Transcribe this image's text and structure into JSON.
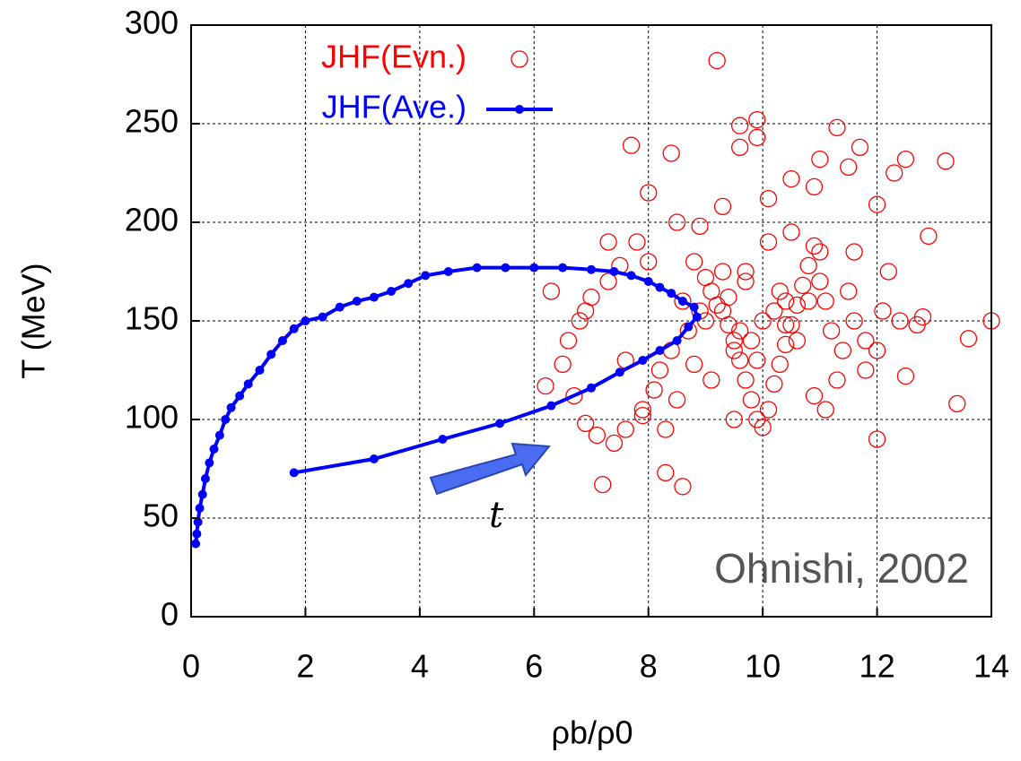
{
  "chart_data": {
    "type": "scatter",
    "xlabel": "ρb/ρ0",
    "ylabel": "T (MeV)",
    "annotations": [
      "Ohnishi, 2002",
      "t"
    ],
    "xlim": [
      0,
      14
    ],
    "ylim": [
      0,
      300
    ],
    "xticks": [
      0,
      2,
      4,
      6,
      8,
      10,
      12,
      14
    ],
    "yticks": [
      0,
      50,
      100,
      150,
      200,
      250,
      300
    ],
    "grid": true,
    "legend": "upper left",
    "series": [
      {
        "name": "JHF(Evn.)",
        "color": "#ff0000",
        "marker": "open-circle",
        "x": [
          9.2,
          9.9,
          9.9,
          9.6,
          9.6,
          13.2,
          14.0,
          13.6,
          13.4,
          8.6,
          7.2,
          8.3,
          12.0,
          12.5,
          12.5,
          6.2,
          6.3,
          7.7,
          8.4,
          11.3,
          11.0,
          11.5,
          11.7,
          12.3,
          12.9,
          12.8,
          12.2,
          12.0,
          11.6,
          10.9,
          10.5,
          10.1,
          9.3,
          8.9,
          8.5,
          8.0,
          7.8,
          7.5,
          7.3,
          7.0,
          6.8,
          6.6,
          6.5,
          6.7,
          6.9,
          7.1,
          7.4,
          7.6,
          7.9,
          8.1,
          8.2,
          8.4,
          8.6,
          8.8,
          9.0,
          9.1,
          9.3,
          9.4,
          9.5,
          9.6,
          9.7,
          9.8,
          9.9,
          10.0,
          10.1,
          10.2,
          10.3,
          10.4,
          10.5,
          10.6,
          10.7,
          10.8,
          10.9,
          11.0,
          11.1,
          11.2,
          11.4,
          11.6,
          11.8,
          12.1,
          9.0,
          9.2,
          9.4,
          9.6,
          9.8,
          10.0,
          10.2,
          10.4,
          9.5,
          9.7,
          8.7,
          8.9,
          10.6,
          10.8,
          9.3,
          9.9,
          10.3,
          8.5,
          11.0,
          11.5,
          7.9,
          8.3,
          9.1,
          10.1,
          10.9,
          11.8,
          12.4,
          7.6,
          6.9,
          8.0,
          9.5,
          10.5,
          11.3,
          12.7,
          8.8,
          9.7,
          10.4,
          11.1,
          7.3,
          12.0
        ],
        "values": [
          282,
          252,
          243,
          249,
          238,
          231,
          150,
          141,
          108,
          66,
          67,
          73,
          90,
          122,
          232,
          117,
          165,
          239,
          235,
          248,
          232,
          228,
          238,
          225,
          193,
          152,
          175,
          209,
          185,
          218,
          222,
          212,
          208,
          198,
          200,
          215,
          190,
          178,
          170,
          162,
          150,
          140,
          128,
          112,
          98,
          92,
          88,
          95,
          105,
          115,
          125,
          135,
          160,
          180,
          172,
          165,
          155,
          148,
          140,
          130,
          120,
          110,
          100,
          96,
          105,
          118,
          128,
          138,
          148,
          158,
          168,
          178,
          188,
          170,
          160,
          145,
          135,
          150,
          125,
          155,
          150,
          158,
          162,
          145,
          140,
          150,
          155,
          148,
          135,
          170,
          145,
          155,
          140,
          160,
          175,
          130,
          165,
          110,
          185,
          165,
          102,
          95,
          120,
          190,
          112,
          140,
          150,
          130,
          155,
          180,
          100,
          195,
          120,
          148,
          128,
          175,
          160,
          105,
          190,
          135
        ]
      },
      {
        "name": "JHF(Ave.)",
        "color": "#0000ff",
        "marker": "dot-line",
        "x": [
          1.8,
          3.2,
          4.4,
          5.4,
          6.3,
          7.0,
          7.5,
          7.9,
          8.2,
          8.5,
          8.7,
          8.85,
          8.8,
          8.6,
          8.4,
          8.2,
          8.0,
          7.7,
          7.4,
          7.0,
          6.5,
          6.0,
          5.5,
          5.0,
          4.5,
          4.1,
          3.8,
          3.5,
          3.2,
          2.9,
          2.6,
          2.3,
          2.0,
          1.8,
          1.6,
          1.4,
          1.2,
          1.0,
          0.85,
          0.7,
          0.6,
          0.5,
          0.4,
          0.32,
          0.25,
          0.2,
          0.15,
          0.12,
          0.1,
          0.08
        ],
        "values": [
          73,
          80,
          90,
          98,
          107,
          116,
          124,
          130,
          135,
          140,
          147,
          152,
          157,
          160,
          164,
          167,
          170,
          173,
          175,
          176,
          177,
          177,
          177,
          177,
          175,
          173,
          169,
          165,
          162,
          160,
          157,
          152,
          150,
          146,
          140,
          133,
          125,
          118,
          112,
          106,
          100,
          92,
          85,
          78,
          70,
          62,
          55,
          48,
          42,
          37
        ]
      }
    ]
  }
}
